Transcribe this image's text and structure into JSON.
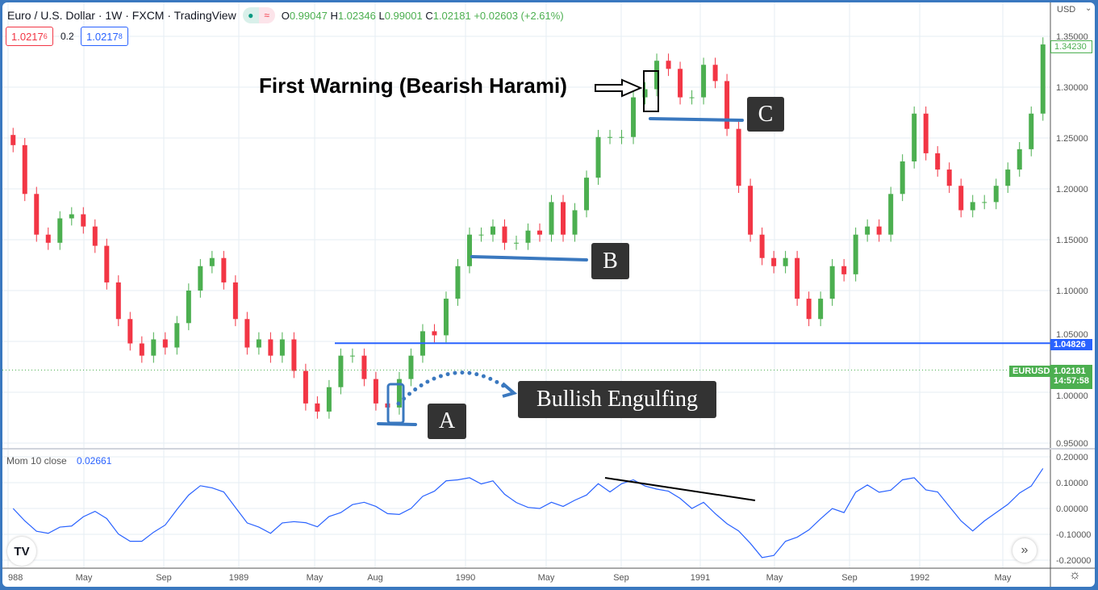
{
  "header": {
    "title": "Euro / U.S. Dollar · 1W · FXCM · TradingView",
    "open_label": "O",
    "open": "0.99047",
    "high_label": "H",
    "high": "1.02346",
    "low_label": "L",
    "low": "0.99001",
    "close_label": "C",
    "close": "1.02181",
    "change": "+0.02603 (+2.61%)",
    "sell_price": "1.0217",
    "sell_sup": "6",
    "spread": "0.2",
    "buy_price": "1.0217",
    "buy_sup": "8"
  },
  "price_axis": {
    "currency": "USD",
    "ticks": [
      "1.35000",
      "1.30000",
      "1.25000",
      "1.20000",
      "1.15000",
      "1.10000",
      "1.05000",
      "1.00000",
      "0.95000"
    ],
    "last_bar": "1.34230",
    "hline_label": "1.04826",
    "symbol_tag": "EURUSD",
    "current_price": "1.02181",
    "countdown": "14:57:58"
  },
  "indicator": {
    "name": "Mom 10 close",
    "value": "0.02661",
    "ticks": [
      "0.20000",
      "0.10000",
      "0.00000",
      "-0.10000",
      "-0.20000"
    ]
  },
  "time_axis": {
    "labels": [
      "988",
      "May",
      "Sep",
      "1989",
      "May",
      "Aug",
      "1990",
      "May",
      "Sep",
      "1991",
      "May",
      "Sep",
      "1992",
      "May"
    ]
  },
  "annotations": {
    "harami": "First Warning (Bearish Harami)",
    "engulfing": "Bullish Engulfing",
    "a": "A",
    "b": "B",
    "c": "C"
  },
  "colors": {
    "up": "#4caf50",
    "down": "#f23645",
    "line": "#2962ff",
    "annot": "#3a78bf",
    "mom": "#2962ff"
  },
  "chart_data": {
    "type": "candlestick",
    "ylim": [
      0.95,
      1.35
    ],
    "horizontal_line": 1.04826,
    "current_price": 1.02181,
    "closes": [
      1.243,
      1.195,
      1.155,
      1.147,
      1.171,
      1.175,
      1.163,
      1.144,
      1.108,
      1.072,
      1.048,
      1.036,
      1.052,
      1.044,
      1.068,
      1.1,
      1.124,
      1.132,
      1.108,
      1.072,
      1.044,
      1.052,
      1.036,
      1.052,
      1.021,
      0.989,
      0.981,
      1.005,
      1.036,
      1.036,
      1.013,
      0.989,
      0.985,
      1.013,
      1.036,
      1.06,
      1.056,
      1.092,
      1.124,
      1.155,
      1.155,
      1.163,
      1.147,
      1.147,
      1.159,
      1.155,
      1.187,
      1.155,
      1.179,
      1.211,
      1.251,
      1.251,
      1.251,
      1.29,
      1.298,
      1.326,
      1.318,
      1.29,
      1.29,
      1.322,
      1.306,
      1.259,
      1.203,
      1.155,
      1.132,
      1.124,
      1.132,
      1.092,
      1.072,
      1.092,
      1.124,
      1.116,
      1.155,
      1.163,
      1.155,
      1.195,
      1.227,
      1.274,
      1.235,
      1.219,
      1.203,
      1.179,
      1.187,
      1.187,
      1.203,
      1.219,
      1.239,
      1.274,
      1.342
    ],
    "momentum_ylim": [
      -0.2,
      0.2
    ]
  }
}
